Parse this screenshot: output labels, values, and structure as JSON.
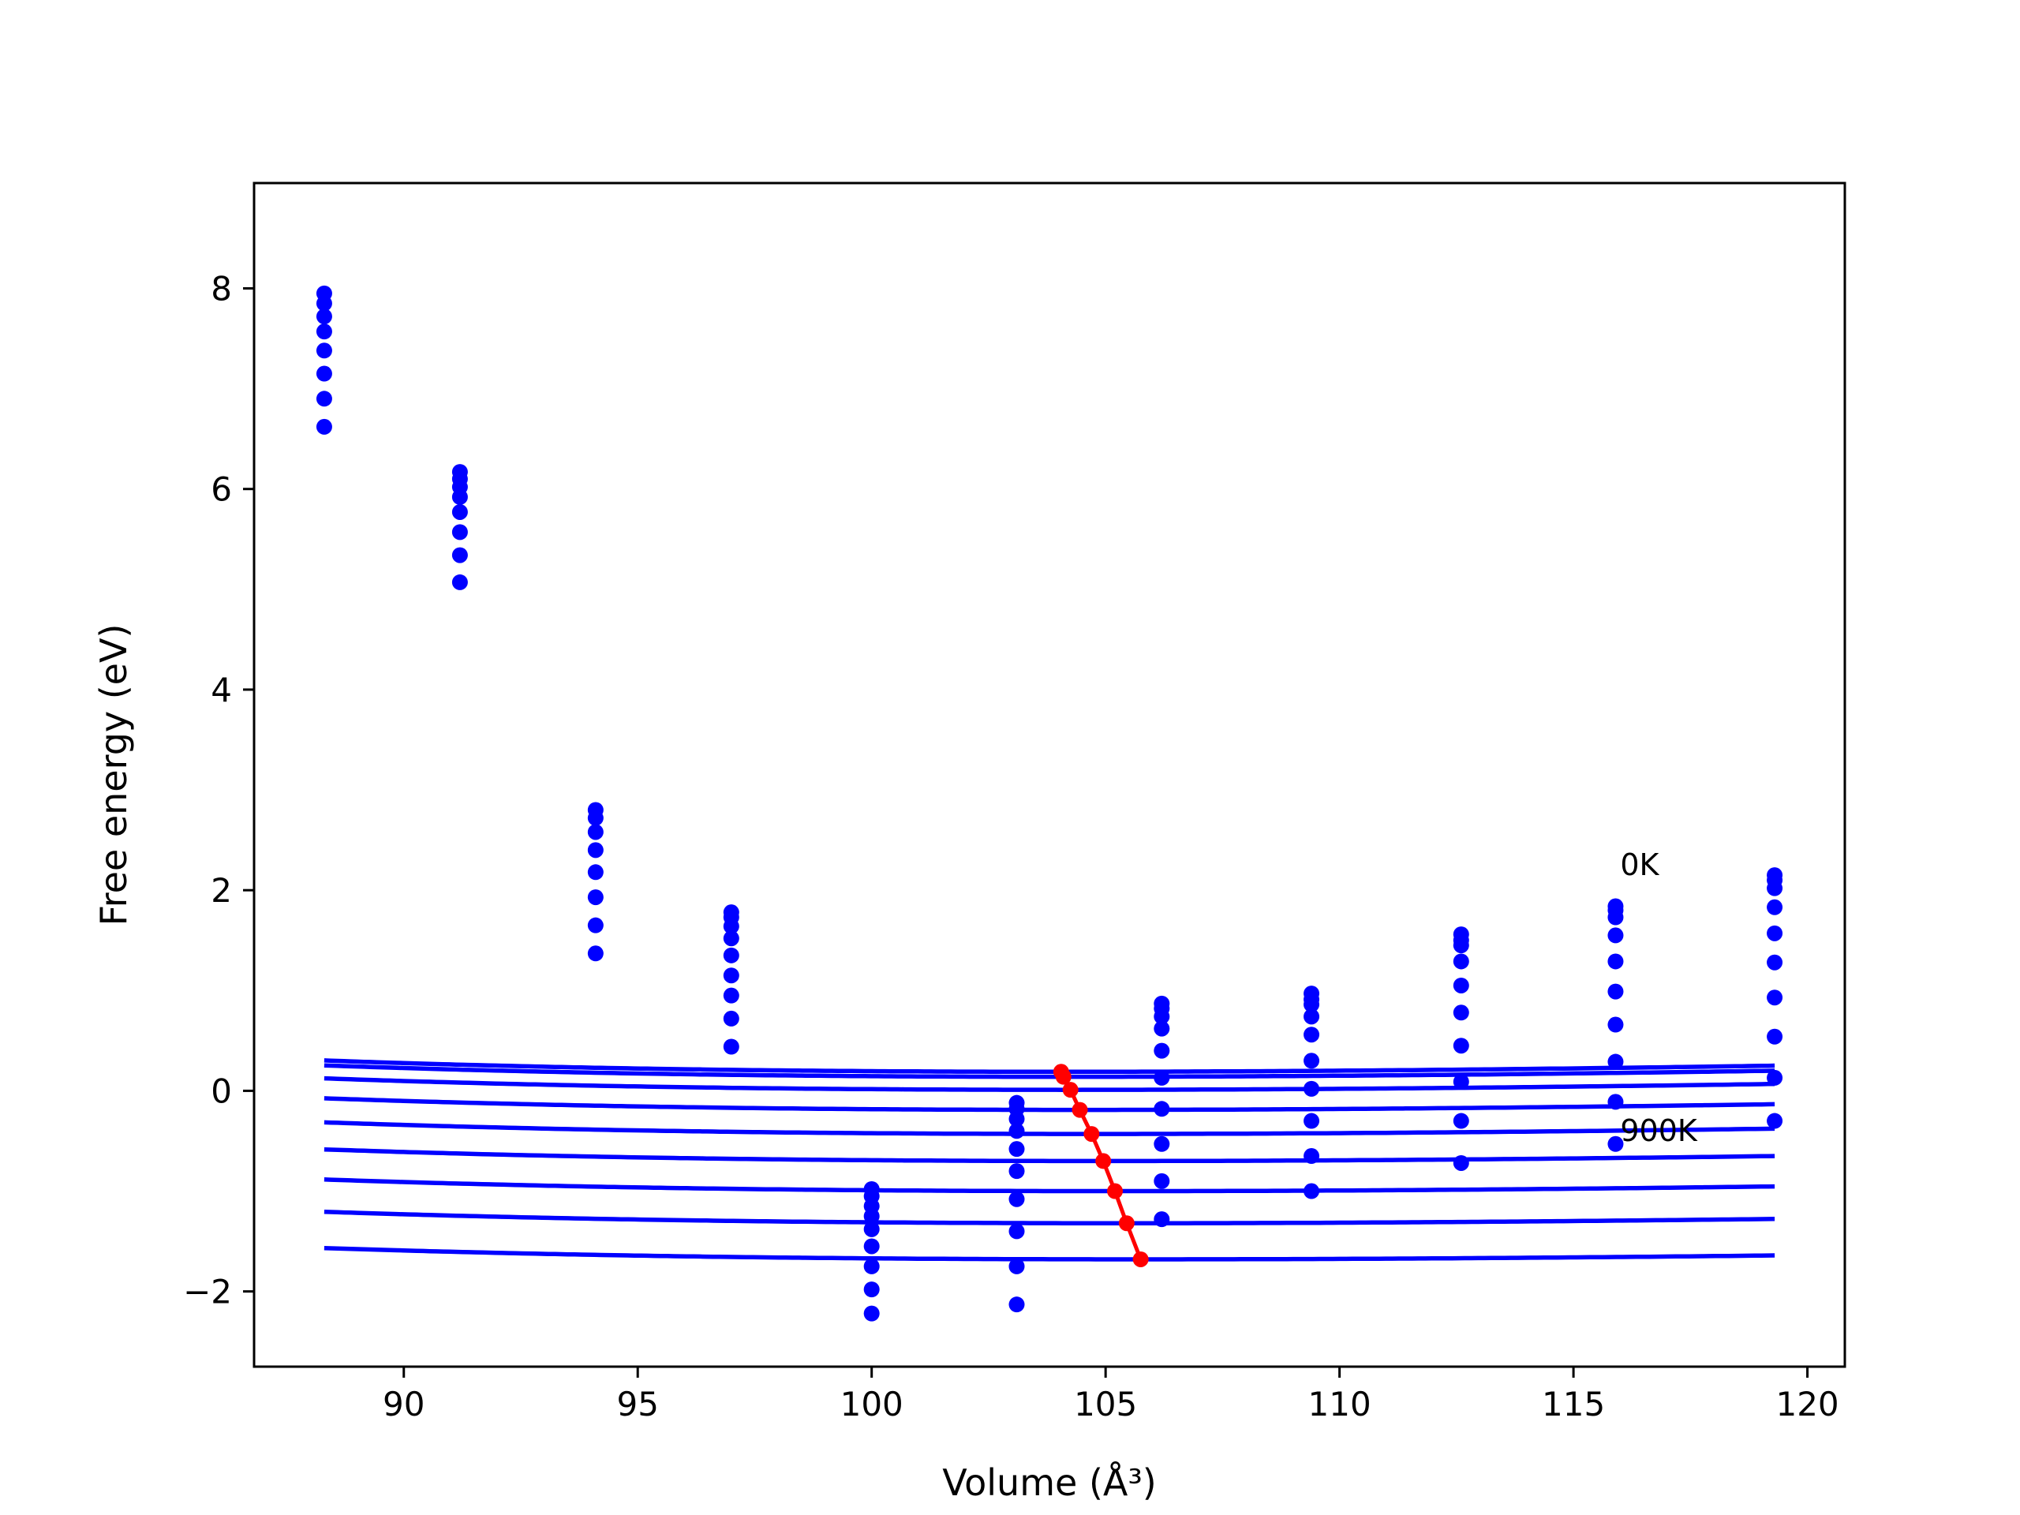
{
  "chart_data": {
    "type": "line",
    "title": "",
    "xlabel": "Volume (Å³)",
    "ylabel": "Free energy (eV)",
    "xlim": [
      86.8,
      120.8
    ],
    "ylim": [
      -2.75,
      9.05
    ],
    "xticks": [
      90,
      95,
      100,
      105,
      110,
      115,
      120
    ],
    "yticks": [
      -2,
      0,
      2,
      4,
      6,
      8
    ],
    "xtick_labels": [
      "90",
      "95",
      "100",
      "105",
      "110",
      "115",
      "120"
    ],
    "ytick_labels": [
      "−2",
      "0",
      "2",
      "4",
      "6",
      "8"
    ],
    "grid": false,
    "legend": "none",
    "colors": {
      "curves": "#0000ff",
      "points": "#0000ff",
      "minima": "#ff0000",
      "axes": "#000000"
    },
    "annotations": [
      {
        "text": "0K",
        "x": 116.0,
        "y": 2.15
      },
      {
        "text": "900K",
        "x": 116.0,
        "y": -0.5
      }
    ],
    "volumes": [
      88.3,
      91.2,
      94.1,
      97.0,
      100.0,
      103.1,
      106.2,
      109.4,
      112.6,
      115.9,
      119.3
    ],
    "curves": [
      {
        "v0": 104.05,
        "fmin": 0.19,
        "b0": 0.07,
        "bp": 4.5
      },
      {
        "v0": 104.1,
        "fmin": 0.14,
        "b0": 0.07,
        "bp": 4.5
      },
      {
        "v0": 104.25,
        "fmin": 0.01,
        "b0": 0.069,
        "bp": 4.5
      },
      {
        "v0": 104.45,
        "fmin": -0.19,
        "b0": 0.068,
        "bp": 4.5
      },
      {
        "v0": 104.7,
        "fmin": -0.43,
        "b0": 0.066,
        "bp": 4.5
      },
      {
        "v0": 104.95,
        "fmin": -0.7,
        "b0": 0.064,
        "bp": 4.5
      },
      {
        "v0": 105.2,
        "fmin": -1.0,
        "b0": 0.062,
        "bp": 4.5
      },
      {
        "v0": 105.45,
        "fmin": -1.32,
        "b0": 0.059,
        "bp": 4.5
      },
      {
        "v0": 105.75,
        "fmin": -1.68,
        "b0": 0.056,
        "bp": 4.5
      }
    ],
    "points": [
      {
        "x": 88.3,
        "y": [
          7.95,
          7.85,
          7.72,
          7.57,
          7.38,
          7.15,
          6.9,
          6.62
        ]
      },
      {
        "x": 91.2,
        "y": [
          6.17,
          6.1,
          6.02,
          5.92,
          5.77,
          5.57,
          5.34,
          5.07
        ]
      },
      {
        "x": 94.1,
        "y": [
          2.8,
          2.72,
          2.58,
          2.4,
          2.18,
          1.93,
          1.65,
          1.37
        ]
      },
      {
        "x": 97.0,
        "y": [
          1.78,
          1.73,
          1.64,
          1.52,
          1.35,
          1.15,
          0.95,
          0.72,
          0.44
        ]
      },
      {
        "x": 100.0,
        "y": [
          -0.98,
          -1.05,
          -1.15,
          -1.25,
          -1.38,
          -1.55,
          -1.75,
          -1.98,
          -2.22
        ]
      },
      {
        "x": 103.1,
        "y": [
          -0.12,
          -0.18,
          -0.28,
          -0.4,
          -0.58,
          -0.8,
          -1.08,
          -1.4,
          -1.75,
          -2.13
        ]
      },
      {
        "x": 106.2,
        "y": [
          0.87,
          0.82,
          0.74,
          0.62,
          0.4,
          0.13,
          -0.18,
          -0.53,
          -0.9,
          -1.28
        ]
      },
      {
        "x": 109.4,
        "y": [
          0.97,
          0.91,
          0.86,
          0.74,
          0.56,
          0.3,
          0.02,
          -0.3,
          -0.65,
          -1.0
        ]
      },
      {
        "x": 112.6,
        "y": [
          1.56,
          1.5,
          1.45,
          1.29,
          1.05,
          0.78,
          0.45,
          0.09,
          -0.3,
          -0.72
        ]
      },
      {
        "x": 115.9,
        "y": [
          1.84,
          1.8,
          1.73,
          1.55,
          1.29,
          0.99,
          0.66,
          0.29,
          -0.11,
          -0.53
        ]
      },
      {
        "x": 119.3,
        "y": [
          2.15,
          2.1,
          2.02,
          1.83,
          1.57,
          1.28,
          0.93,
          0.54,
          0.13,
          -0.3
        ]
      }
    ],
    "minima": [
      {
        "x": 104.05,
        "y": 0.19
      },
      {
        "x": 104.1,
        "y": 0.14
      },
      {
        "x": 104.25,
        "y": 0.01
      },
      {
        "x": 104.45,
        "y": -0.19
      },
      {
        "x": 104.7,
        "y": -0.43
      },
      {
        "x": 104.95,
        "y": -0.7
      },
      {
        "x": 105.2,
        "y": -1.0
      },
      {
        "x": 105.45,
        "y": -1.32
      },
      {
        "x": 105.75,
        "y": -1.68
      }
    ]
  }
}
